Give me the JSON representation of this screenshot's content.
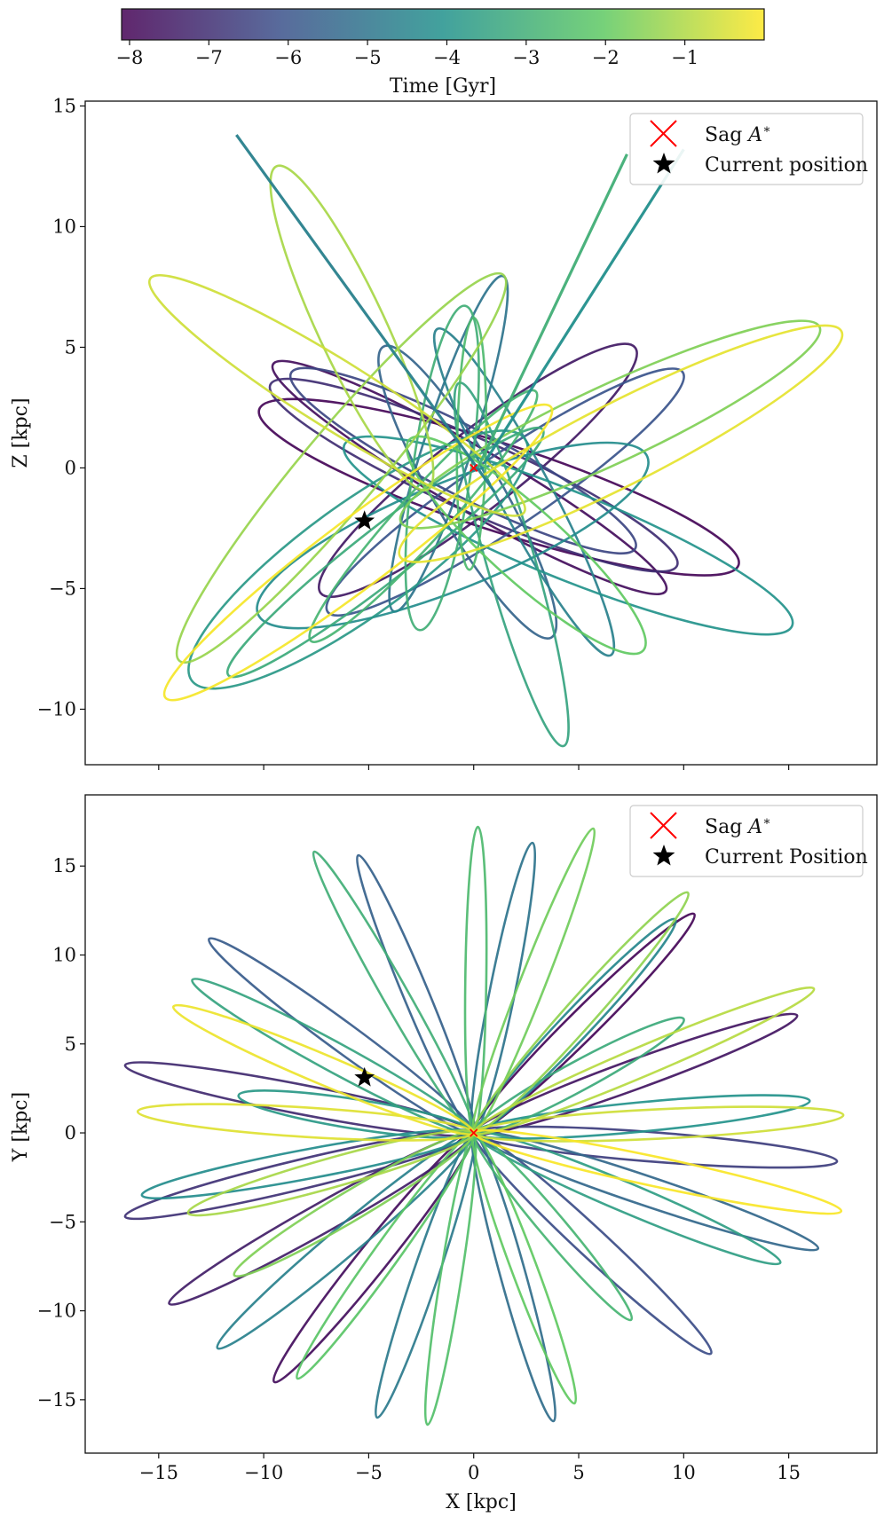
{
  "figure": {
    "colorbar": {
      "label": "Time [Gyr]",
      "range": [
        -8.1,
        0
      ],
      "ticks": [
        -8,
        -7,
        -6,
        -5,
        -4,
        -3,
        -2,
        -1
      ],
      "tick_labels": [
        "−8",
        "−7",
        "−6",
        "−5",
        "−4",
        "−3",
        "−2",
        "−1"
      ],
      "colormap": [
        "#440154",
        "#3b528b",
        "#21918c",
        "#5ec962",
        "#fde725"
      ]
    },
    "marker_colors": {
      "sag": "#ff0000",
      "current": "#000000"
    }
  },
  "chart_data": [
    {
      "type": "line",
      "title": "",
      "xlabel": "",
      "ylabel": "Z [kpc]",
      "xlim": [
        -18.5,
        19.2
      ],
      "ylim": [
        -12.3,
        15.2
      ],
      "x_ticks": [
        -15,
        -10,
        -5,
        0,
        5,
        10,
        15
      ],
      "y_ticks": [
        -10,
        -5,
        0,
        5,
        10,
        15
      ],
      "y_tick_labels": [
        "−10",
        "−5",
        "0",
        "5",
        "10",
        "15"
      ],
      "legend": {
        "position": "top-right",
        "entries": [
          "Sag A*",
          "Current position"
        ]
      },
      "sag_a": {
        "x": 0,
        "z": 0
      },
      "current_position": {
        "x": -5.2,
        "z": -2.2
      },
      "series": [
        {
          "name": "orbit-1",
          "t": -8.0,
          "a": 12.0,
          "b": 1.8,
          "angle": -18,
          "cx": 1.2,
          "cy": -0.8
        },
        {
          "name": "orbit-2",
          "t": -7.8,
          "a": 10.8,
          "b": 1.3,
          "angle": -30,
          "cx": -0.2,
          "cy": -0.4
        },
        {
          "name": "orbit-3",
          "t": -7.5,
          "a": 9.5,
          "b": 1.6,
          "angle": 38,
          "cx": 0.2,
          "cy": -0.1
        },
        {
          "name": "orbit-4",
          "t": -7.0,
          "a": 10.6,
          "b": 1.5,
          "angle": -24,
          "cx": 0.0,
          "cy": -0.3
        },
        {
          "name": "orbit-5",
          "t": -6.4,
          "a": 9.2,
          "b": 1.4,
          "angle": -27,
          "cx": -0.5,
          "cy": 0.3
        },
        {
          "name": "orbit-6",
          "t": -6.0,
          "a": 10.2,
          "b": 1.5,
          "angle": 34,
          "cx": 1.5,
          "cy": -1.0
        },
        {
          "name": "orbit-7",
          "t": -5.5,
          "a": 8.0,
          "b": 1.4,
          "angle": -60,
          "cx": -0.3,
          "cy": -1.0
        },
        {
          "name": "orbit-8",
          "t": -5.0,
          "a": 8.4,
          "b": 1.0,
          "angle": 72,
          "cx": -1.2,
          "cy": 1.0
        },
        {
          "name": "orbit-9",
          "t": -4.6,
          "a": 8.8,
          "b": 1.1,
          "angle": -62,
          "cx": 2.4,
          "cy": -1.0
        },
        {
          "name": "orbit-10",
          "t": -4.2,
          "a": 10.0,
          "b": 2.2,
          "angle": 22,
          "cx": -1.0,
          "cy": -2.8
        },
        {
          "name": "orbit-11",
          "t": -4.0,
          "a": 11.5,
          "b": 1.8,
          "angle": -22,
          "cx": 4.5,
          "cy": -2.8
        },
        {
          "name": "orbit-12",
          "t": -3.8,
          "a": 9.8,
          "b": 2.3,
          "angle": 36,
          "cx": -5.5,
          "cy": -3.8
        },
        {
          "name": "orbit-13",
          "t": -3.4,
          "a": 9.0,
          "b": 1.0,
          "angle": -74,
          "cx": 1.8,
          "cy": -4.0
        },
        {
          "name": "orbit-14",
          "t": -3.2,
          "a": 9.5,
          "b": 1.1,
          "angle": 38,
          "cx": -4.2,
          "cy": -3.5
        },
        {
          "name": "orbit-15",
          "t": -3.0,
          "a": 7.8,
          "b": 1.2,
          "angle": 82,
          "cx": -1.5,
          "cy": 0.0
        },
        {
          "name": "orbit-16",
          "t": -2.8,
          "a": 8.0,
          "b": 1.0,
          "angle": 48,
          "cx": -2.4,
          "cy": -2.0
        },
        {
          "name": "orbit-17",
          "t": -2.6,
          "a": 6.0,
          "b": 0.6,
          "angle": 89,
          "cx": -0.1,
          "cy": 1.0
        },
        {
          "name": "orbit-18",
          "t": -2.0,
          "a": 7.5,
          "b": 1.5,
          "angle": -42,
          "cx": 2.5,
          "cy": -3.2
        },
        {
          "name": "orbit-19",
          "t": -1.6,
          "a": 11.0,
          "b": 1.6,
          "angle": 25,
          "cx": 6.5,
          "cy": 1.8
        },
        {
          "name": "orbit-20",
          "t": -1.3,
          "a": 12.0,
          "b": 1.6,
          "angle": 50,
          "cx": -6.3,
          "cy": 0.0
        },
        {
          "name": "orbit-21",
          "t": -1.1,
          "a": 8.5,
          "b": 1.4,
          "angle": -65,
          "cx": -5.8,
          "cy": 5.8
        },
        {
          "name": "orbit-22",
          "t": -0.6,
          "a": 10.5,
          "b": 1.4,
          "angle": -32,
          "cx": -6.5,
          "cy": 3.0
        },
        {
          "name": "orbit-23",
          "t": -0.3,
          "a": 11.8,
          "b": 1.7,
          "angle": 27,
          "cx": 7.0,
          "cy": 1.0
        },
        {
          "name": "orbit-24",
          "t": -0.1,
          "a": 11.5,
          "b": 1.4,
          "angle": 37,
          "cx": -5.5,
          "cy": -3.5
        }
      ],
      "lines": [
        {
          "name": "streak-1",
          "t": -4.6,
          "x1": -11.3,
          "y1": 13.8,
          "x2": 1.0,
          "y2": -1.0
        },
        {
          "name": "streak-2",
          "t": -3.0,
          "x1": 7.3,
          "y1": 13.0,
          "x2": 0.2,
          "y2": 0.0
        },
        {
          "name": "streak-3",
          "t": -4.1,
          "x1": 10.0,
          "y1": 13.2,
          "x2": 0.5,
          "y2": 0.2
        }
      ]
    },
    {
      "type": "line",
      "title": "",
      "xlabel": "X [kpc]",
      "ylabel": "Y [kpc]",
      "xlim": [
        -18.5,
        19.2
      ],
      "ylim": [
        -18.0,
        19.0
      ],
      "x_ticks": [
        -15,
        -10,
        -5,
        0,
        5,
        10,
        15
      ],
      "x_tick_labels": [
        "−15",
        "−10",
        "−5",
        "0",
        "5",
        "10",
        "15"
      ],
      "y_ticks": [
        -15,
        -10,
        -5,
        0,
        5,
        10,
        15
      ],
      "y_tick_labels": [
        "−15",
        "−10",
        "−5",
        "0",
        "5",
        "10",
        "15"
      ],
      "legend": {
        "position": "top-right",
        "entries": [
          "Sag A*",
          "Current Position"
        ]
      },
      "sag_a": {
        "x": 0,
        "y": 0
      },
      "current_position": {
        "x": -5.2,
        "y": 3.1
      },
      "series": [
        {
          "name": "petal-1",
          "t": -8.0,
          "x": 10.5,
          "y": 12.3,
          "w": 0.7
        },
        {
          "name": "petal-2",
          "t": -7.8,
          "x": -9.5,
          "y": -14.0,
          "w": 0.7
        },
        {
          "name": "petal-3",
          "t": -7.6,
          "x": 15.4,
          "y": 6.6,
          "w": 0.7
        },
        {
          "name": "petal-4",
          "t": -7.4,
          "x": -14.5,
          "y": -9.6,
          "w": 0.7
        },
        {
          "name": "petal-5",
          "t": -7.1,
          "x": -16.6,
          "y": 3.8,
          "w": 0.7
        },
        {
          "name": "petal-6",
          "t": -6.9,
          "x": -16.6,
          "y": -4.7,
          "w": 0.7
        },
        {
          "name": "petal-7",
          "t": -6.6,
          "x": 17.3,
          "y": -1.6,
          "w": 0.7
        },
        {
          "name": "petal-8",
          "t": -6.2,
          "x": 11.3,
          "y": -12.4,
          "w": 0.7
        },
        {
          "name": "petal-9",
          "t": -5.8,
          "x": -12.6,
          "y": 10.9,
          "w": 0.7
        },
        {
          "name": "petal-10",
          "t": -5.6,
          "x": -5.5,
          "y": 15.6,
          "w": 0.6
        },
        {
          "name": "petal-11",
          "t": -5.4,
          "x": 16.4,
          "y": -6.5,
          "w": 0.7
        },
        {
          "name": "petal-12",
          "t": -5.2,
          "x": 3.8,
          "y": -16.2,
          "w": 0.6
        },
        {
          "name": "petal-13",
          "t": -5.0,
          "x": 2.8,
          "y": 16.3,
          "w": 0.6
        },
        {
          "name": "petal-14",
          "t": -4.8,
          "x": -4.6,
          "y": -16.0,
          "w": 0.6
        },
        {
          "name": "petal-15",
          "t": -4.6,
          "x": -12.2,
          "y": -12.1,
          "w": 0.7
        },
        {
          "name": "petal-16",
          "t": -4.4,
          "x": 9.6,
          "y": 12.0,
          "w": 0.7
        },
        {
          "name": "petal-17",
          "t": -4.2,
          "x": -15.8,
          "y": -3.5,
          "w": 0.7
        },
        {
          "name": "petal-18",
          "t": -4.0,
          "x": 16.0,
          "y": 1.8,
          "w": 0.7
        },
        {
          "name": "petal-19",
          "t": -3.8,
          "x": -11.2,
          "y": 2.1,
          "w": 0.7
        },
        {
          "name": "petal-20",
          "t": -3.6,
          "x": 14.6,
          "y": -7.3,
          "w": 0.7
        },
        {
          "name": "petal-21",
          "t": -3.4,
          "x": -13.4,
          "y": 8.6,
          "w": 0.7
        },
        {
          "name": "petal-22",
          "t": -3.2,
          "x": 10.0,
          "y": 6.4,
          "w": 0.7
        },
        {
          "name": "petal-23",
          "t": -3.0,
          "x": -7.6,
          "y": 15.8,
          "w": 0.6
        },
        {
          "name": "petal-24",
          "t": -2.8,
          "x": 7.5,
          "y": -10.5,
          "w": 0.6
        },
        {
          "name": "petal-25",
          "t": -2.6,
          "x": 0.2,
          "y": 17.2,
          "w": 0.5
        },
        {
          "name": "petal-26",
          "t": -2.4,
          "x": -2.2,
          "y": -16.4,
          "w": 0.5
        },
        {
          "name": "petal-27",
          "t": -2.2,
          "x": -8.4,
          "y": -13.8,
          "w": 0.6
        },
        {
          "name": "petal-28",
          "t": -2.0,
          "x": 4.8,
          "y": -15.2,
          "w": 0.6
        },
        {
          "name": "petal-29",
          "t": -1.8,
          "x": 5.7,
          "y": 17.1,
          "w": 0.6
        },
        {
          "name": "petal-30",
          "t": -1.6,
          "x": -11.4,
          "y": -8.0,
          "w": 0.7
        },
        {
          "name": "petal-31",
          "t": -1.4,
          "x": 10.2,
          "y": 13.5,
          "w": 0.7
        },
        {
          "name": "petal-32",
          "t": -1.1,
          "x": -13.6,
          "y": -4.5,
          "w": 0.7
        },
        {
          "name": "petal-33",
          "t": -0.9,
          "x": 16.2,
          "y": 8.1,
          "w": 0.7
        },
        {
          "name": "petal-34",
          "t": -0.6,
          "x": 17.6,
          "y": 1.0,
          "w": 0.7
        },
        {
          "name": "petal-35",
          "t": -0.4,
          "x": -16.0,
          "y": 1.2,
          "w": 0.7
        },
        {
          "name": "petal-36",
          "t": -0.2,
          "x": -14.3,
          "y": 7.1,
          "w": 0.7
        },
        {
          "name": "petal-37",
          "t": -0.05,
          "x": 17.5,
          "y": -4.4,
          "w": 0.7
        }
      ]
    }
  ]
}
